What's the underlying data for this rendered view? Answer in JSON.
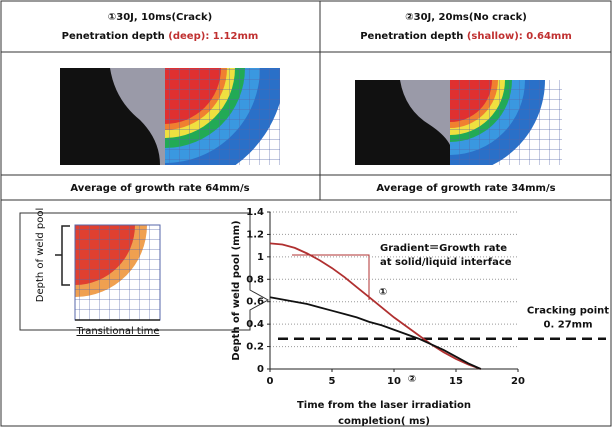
{
  "panels": [
    {
      "title": "①30J, 10ms(Crack)",
      "depth_label": "Penetration depth ",
      "depth_class": "(deep)",
      "depth_value": ": 1.12mm",
      "caption": "Average of growth rate  64mm/s"
    },
    {
      "title": "②30J, 20ms(No crack)",
      "depth_label": "Penetration depth ",
      "depth_class": "(shallow)",
      "depth_value": ": 0.64mm",
      "caption": "Average of growth rate  34mm/s"
    }
  ],
  "inset": {
    "y_label": "Depth of weld pool",
    "x_label": "Transitional time"
  },
  "chart_data": {
    "type": "line",
    "y_label": "Depth of weld pool (mm)",
    "x_label": [
      "Time from  the laser irradiation",
      "completion( ms)"
    ],
    "x": [
      0,
      1,
      2,
      3,
      4,
      5,
      6,
      7,
      8,
      9,
      10,
      11,
      12,
      13,
      14,
      15,
      16,
      17
    ],
    "series": [
      {
        "name": "①",
        "color": "#b03030",
        "values": [
          1.12,
          1.11,
          1.08,
          1.03,
          0.97,
          0.9,
          0.82,
          0.73,
          0.64,
          0.55,
          0.46,
          0.38,
          0.3,
          0.22,
          0.15,
          0.09,
          0.04,
          0
        ]
      },
      {
        "name": "②",
        "color": "#111111",
        "values": [
          0.64,
          0.62,
          0.6,
          0.58,
          0.55,
          0.52,
          0.49,
          0.46,
          0.42,
          0.39,
          0.35,
          0.31,
          0.27,
          0.22,
          0.17,
          0.11,
          0.05,
          0
        ]
      }
    ],
    "xlim": [
      0,
      20
    ],
    "xticks": [
      0,
      5,
      10,
      15,
      20
    ],
    "ylim": [
      0,
      1.4
    ],
    "yticks": [
      0,
      0.2,
      0.4,
      0.6,
      0.8,
      1,
      1.2,
      1.4
    ],
    "grid": true,
    "annotation": [
      "Gradient＝Growth rate",
      "at solid/liquid interface"
    ],
    "threshold": {
      "value": 0.27,
      "title": "Cracking point",
      "label": "0. 27mm"
    }
  }
}
